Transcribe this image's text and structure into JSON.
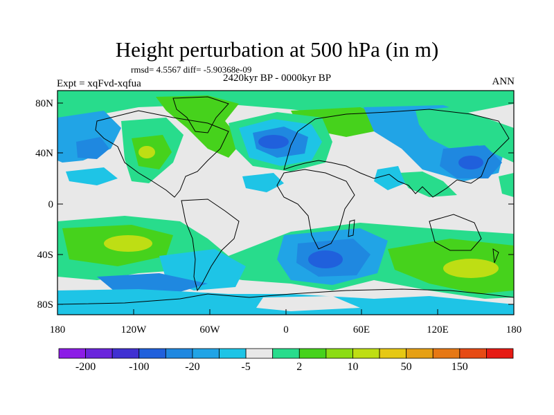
{
  "title": "Height perturbation at 500 hPa (in m)",
  "stats": "rmsd= 4.5567 diff= -5.90368e-09",
  "period": "2420kyr BP - 0000kyr BP",
  "experiment": "Expt = xqFvd-xqfua",
  "season": "ANN",
  "lat_ticks": [
    "80N",
    "40N",
    "0",
    "40S",
    "80S"
  ],
  "lon_ticks": [
    "180",
    "120W",
    "60W",
    "0",
    "60E",
    "120E",
    "180"
  ],
  "colorbar": {
    "colors": [
      "#8c1ce6",
      "#6a24dc",
      "#4030d2",
      "#2060dc",
      "#1f88e0",
      "#21a4e6",
      "#1ec4e6",
      "#e8e8e8",
      "#28dc8c",
      "#46d21c",
      "#8cdc14",
      "#bede14",
      "#e6c814",
      "#e6a014",
      "#e67814",
      "#e64a14",
      "#e61a14"
    ],
    "labels": [
      "-200",
      "-100",
      "-20",
      "-5",
      "2",
      "10",
      "50",
      "150"
    ]
  },
  "colors": {
    "grey": "#e8e8e8",
    "cyan": "#1ec4e6",
    "blue_light": "#21a4e6",
    "blue": "#1f88e0",
    "mint": "#28dc8c",
    "green": "#46d21c",
    "yellowgreen": "#bede14"
  }
}
